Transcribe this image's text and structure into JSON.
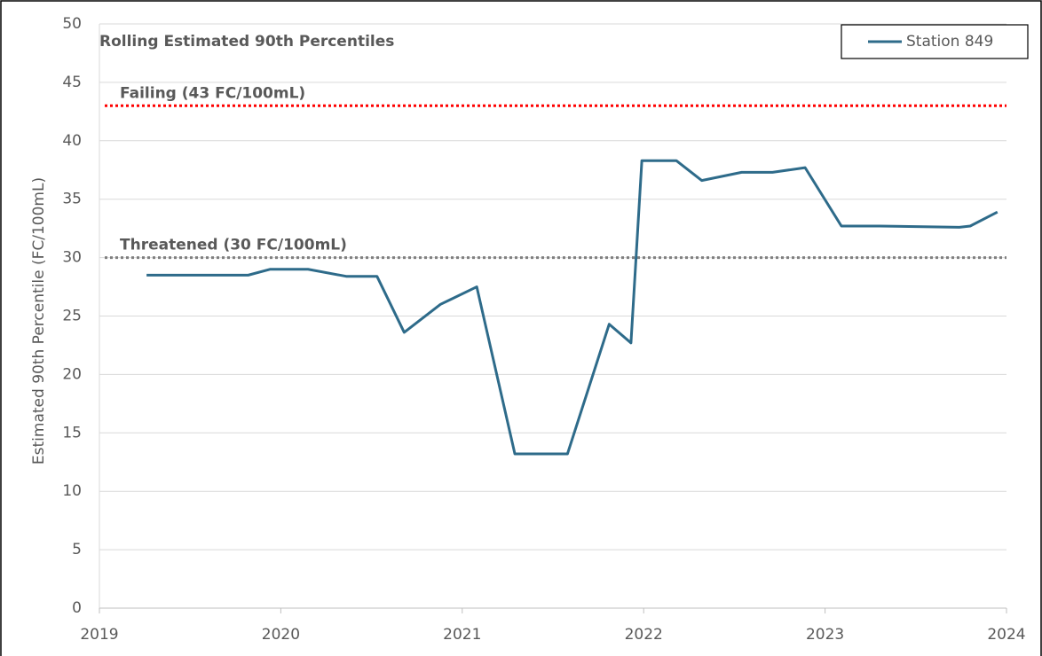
{
  "chart_data": {
    "type": "line",
    "title": "Rolling Estimated 90th Percentiles",
    "y_label": "Estimated 90th Percentile (FC/100mL)",
    "x": [
      2019.26,
      2019.82,
      2019.94,
      2020.15,
      2020.36,
      2020.53,
      2020.68,
      2020.88,
      2021.08,
      2021.29,
      2021.58,
      2021.81,
      2021.93,
      2021.99,
      2022.18,
      2022.32,
      2022.54,
      2022.71,
      2022.89,
      2023.09,
      2023.3,
      2023.74,
      2023.8,
      2023.95
    ],
    "series": [
      {
        "name": "Station 849",
        "color": "#2e6b8a",
        "values": [
          28.5,
          28.5,
          29,
          29,
          28.4,
          28.4,
          23.6,
          26,
          27.5,
          13.2,
          13.2,
          24.3,
          22.7,
          38.3,
          38.3,
          36.6,
          37.3,
          37.3,
          37.7,
          32.7,
          32.7,
          32.6,
          32.7,
          33.9
        ]
      }
    ],
    "thresholds": [
      {
        "label": "Failing (43 FC/100mL)",
        "value": 43,
        "color": "#ff0000"
      },
      {
        "label": "Threatened (30 FC/100mL)",
        "value": 30,
        "color": "#808080"
      }
    ],
    "xlim": [
      2019,
      2024
    ],
    "xticks": [
      2019,
      2020,
      2021,
      2022,
      2023,
      2024
    ],
    "ylim": [
      0,
      50
    ],
    "yticks": [
      0,
      5,
      10,
      15,
      20,
      25,
      30,
      35,
      40,
      45,
      50
    ],
    "grid": true,
    "legend": "upper right"
  }
}
